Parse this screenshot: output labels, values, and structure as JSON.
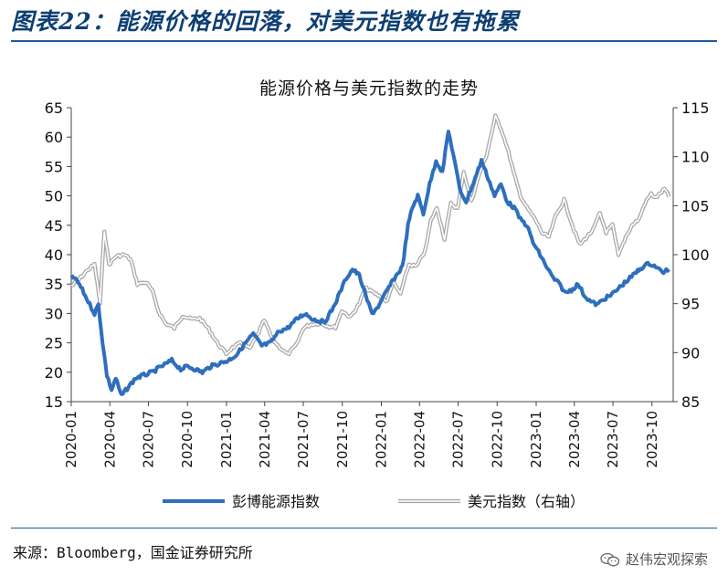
{
  "figure": {
    "title": "图表22：能源价格的回落，对美元指数也有拖累",
    "source": "来源：Bloomberg，国金证券研究所",
    "watermark": "赵伟宏观探索",
    "watermark_icon": "wechat-icon",
    "accent_color": "#0d3f73"
  },
  "chart_data": {
    "type": "line",
    "title": "能源价格与美元指数的走势",
    "left_axis": {
      "min": 15,
      "max": 65,
      "ticks": [
        "15",
        "20",
        "25",
        "30",
        "35",
        "40",
        "45",
        "50",
        "55",
        "60",
        "65"
      ]
    },
    "right_axis": {
      "min": 85,
      "max": 115,
      "ticks": [
        "85",
        "90",
        "95",
        "100",
        "105",
        "110",
        "115"
      ]
    },
    "x_ticks": [
      "2020-01",
      "2020-04",
      "2020-07",
      "2020-10",
      "2021-01",
      "2021-04",
      "2021-07",
      "2021-10",
      "2022-01",
      "2022-04",
      "2022-07",
      "2022-10",
      "2023-01",
      "2023-04",
      "2023-07",
      "2023-10"
    ],
    "legend": {
      "position": "bottom"
    },
    "grid": false,
    "series": [
      {
        "name": "彭博能源指数",
        "axis": "left",
        "color": "#2e6fbd",
        "points": [
          [
            "2020-01-02",
            36.5
          ],
          [
            "2020-01-20",
            35.0
          ],
          [
            "2020-02-10",
            32.0
          ],
          [
            "2020-02-25",
            30.0
          ],
          [
            "2020-03-05",
            31.5
          ],
          [
            "2020-03-15",
            25.0
          ],
          [
            "2020-03-25",
            19.5
          ],
          [
            "2020-04-05",
            17.0
          ],
          [
            "2020-04-15",
            19.0
          ],
          [
            "2020-04-28",
            16.0
          ],
          [
            "2020-05-15",
            17.5
          ],
          [
            "2020-06-01",
            19.0
          ],
          [
            "2020-06-20",
            19.5
          ],
          [
            "2020-07-10",
            20.0
          ],
          [
            "2020-08-01",
            21.0
          ],
          [
            "2020-08-25",
            22.0
          ],
          [
            "2020-09-15",
            20.5
          ],
          [
            "2020-10-01",
            21.0
          ],
          [
            "2020-10-20",
            20.5
          ],
          [
            "2020-11-05",
            20.0
          ],
          [
            "2020-11-25",
            21.0
          ],
          [
            "2020-12-15",
            21.5
          ],
          [
            "2021-01-05",
            22.0
          ],
          [
            "2021-01-25",
            23.0
          ],
          [
            "2021-02-15",
            25.0
          ],
          [
            "2021-03-05",
            26.5
          ],
          [
            "2021-03-25",
            24.5
          ],
          [
            "2021-04-15",
            25.0
          ],
          [
            "2021-05-05",
            27.0
          ],
          [
            "2021-05-25",
            27.5
          ],
          [
            "2021-06-15",
            29.0
          ],
          [
            "2021-07-05",
            30.0
          ],
          [
            "2021-07-25",
            29.0
          ],
          [
            "2021-08-20",
            28.5
          ],
          [
            "2021-09-10",
            31.0
          ],
          [
            "2021-09-25",
            33.5
          ],
          [
            "2021-10-10",
            36.0
          ],
          [
            "2021-10-25",
            37.5
          ],
          [
            "2021-11-10",
            36.5
          ],
          [
            "2021-11-25",
            33.0
          ],
          [
            "2021-12-10",
            30.0
          ],
          [
            "2021-12-28",
            31.5
          ],
          [
            "2022-01-15",
            34.0
          ],
          [
            "2022-02-01",
            36.0
          ],
          [
            "2022-02-20",
            38.0
          ],
          [
            "2022-03-05",
            45.0
          ],
          [
            "2022-03-15",
            48.0
          ],
          [
            "2022-03-28",
            50.0
          ],
          [
            "2022-04-10",
            47.0
          ],
          [
            "2022-04-25",
            52.0
          ],
          [
            "2022-05-10",
            56.0
          ],
          [
            "2022-05-25",
            54.0
          ],
          [
            "2022-06-08",
            61.0
          ],
          [
            "2022-06-20",
            57.0
          ],
          [
            "2022-07-05",
            51.0
          ],
          [
            "2022-07-20",
            49.0
          ],
          [
            "2022-08-10",
            53.0
          ],
          [
            "2022-08-25",
            56.0
          ],
          [
            "2022-09-10",
            53.0
          ],
          [
            "2022-09-25",
            50.0
          ],
          [
            "2022-10-10",
            52.0
          ],
          [
            "2022-10-25",
            49.0
          ],
          [
            "2022-11-10",
            48.0
          ],
          [
            "2022-11-25",
            46.0
          ],
          [
            "2022-12-10",
            45.0
          ],
          [
            "2022-12-25",
            42.0
          ],
          [
            "2023-01-10",
            40.0
          ],
          [
            "2023-01-25",
            38.0
          ],
          [
            "2023-02-10",
            36.0
          ],
          [
            "2023-02-25",
            35.0
          ],
          [
            "2023-03-10",
            33.5
          ],
          [
            "2023-03-25",
            34.0
          ],
          [
            "2023-04-10",
            35.0
          ],
          [
            "2023-04-25",
            33.0
          ],
          [
            "2023-05-10",
            32.0
          ],
          [
            "2023-05-25",
            31.5
          ],
          [
            "2023-06-10",
            32.5
          ],
          [
            "2023-06-25",
            33.0
          ],
          [
            "2023-07-10",
            34.0
          ],
          [
            "2023-07-25",
            35.0
          ],
          [
            "2023-08-10",
            36.0
          ],
          [
            "2023-08-25",
            37.0
          ],
          [
            "2023-09-10",
            38.0
          ],
          [
            "2023-09-25",
            38.5
          ],
          [
            "2023-10-10",
            38.0
          ],
          [
            "2023-10-25",
            37.0
          ],
          [
            "2023-11-10",
            37.5
          ]
        ]
      },
      {
        "name": "美元指数（右轴）",
        "axis": "right",
        "color": "#a8a8a8",
        "points": [
          [
            "2020-01-02",
            96.8
          ],
          [
            "2020-01-20",
            97.5
          ],
          [
            "2020-02-10",
            98.5
          ],
          [
            "2020-02-25",
            99.0
          ],
          [
            "2020-03-09",
            95.0
          ],
          [
            "2020-03-19",
            102.5
          ],
          [
            "2020-03-30",
            99.0
          ],
          [
            "2020-04-15",
            99.8
          ],
          [
            "2020-05-05",
            100.0
          ],
          [
            "2020-05-20",
            99.5
          ],
          [
            "2020-06-05",
            97.0
          ],
          [
            "2020-06-25",
            97.2
          ],
          [
            "2020-07-10",
            96.3
          ],
          [
            "2020-07-25",
            94.2
          ],
          [
            "2020-08-10",
            93.0
          ],
          [
            "2020-08-31",
            92.5
          ],
          [
            "2020-09-20",
            93.8
          ],
          [
            "2020-10-10",
            93.4
          ],
          [
            "2020-10-30",
            93.5
          ],
          [
            "2020-11-20",
            92.4
          ],
          [
            "2020-12-10",
            91.0
          ],
          [
            "2020-12-31",
            89.9
          ],
          [
            "2021-01-15",
            90.5
          ],
          [
            "2021-02-05",
            91.0
          ],
          [
            "2021-02-25",
            90.4
          ],
          [
            "2021-03-15",
            91.8
          ],
          [
            "2021-03-31",
            93.3
          ],
          [
            "2021-04-20",
            91.3
          ],
          [
            "2021-05-10",
            90.4
          ],
          [
            "2021-05-25",
            89.8
          ],
          [
            "2021-06-15",
            90.8
          ],
          [
            "2021-07-01",
            92.5
          ],
          [
            "2021-07-20",
            92.9
          ],
          [
            "2021-08-10",
            93.0
          ],
          [
            "2021-08-30",
            92.7
          ],
          [
            "2021-09-15",
            92.6
          ],
          [
            "2021-09-30",
            94.3
          ],
          [
            "2021-10-20",
            93.6
          ],
          [
            "2021-11-10",
            95.0
          ],
          [
            "2021-11-24",
            96.6
          ],
          [
            "2021-12-10",
            96.2
          ],
          [
            "2021-12-31",
            95.7
          ],
          [
            "2022-01-15",
            95.2
          ],
          [
            "2022-01-28",
            97.2
          ],
          [
            "2022-02-15",
            96.0
          ],
          [
            "2022-03-07",
            99.0
          ],
          [
            "2022-03-25",
            98.8
          ],
          [
            "2022-04-15",
            100.5
          ],
          [
            "2022-04-28",
            103.5
          ],
          [
            "2022-05-12",
            104.8
          ],
          [
            "2022-05-30",
            101.6
          ],
          [
            "2022-06-14",
            105.2
          ],
          [
            "2022-06-30",
            104.7
          ],
          [
            "2022-07-14",
            108.5
          ],
          [
            "2022-08-01",
            105.4
          ],
          [
            "2022-08-22",
            108.5
          ],
          [
            "2022-09-05",
            110.0
          ],
          [
            "2022-09-27",
            114.1
          ],
          [
            "2022-10-10",
            112.9
          ],
          [
            "2022-10-25",
            110.9
          ],
          [
            "2022-11-10",
            108.2
          ],
          [
            "2022-11-25",
            106.0
          ],
          [
            "2022-12-10",
            104.8
          ],
          [
            "2022-12-31",
            103.5
          ],
          [
            "2023-01-15",
            102.2
          ],
          [
            "2023-01-31",
            101.8
          ],
          [
            "2023-02-15",
            103.8
          ],
          [
            "2023-03-08",
            105.6
          ],
          [
            "2023-03-31",
            102.5
          ],
          [
            "2023-04-14",
            101.0
          ],
          [
            "2023-04-28",
            101.7
          ],
          [
            "2023-05-15",
            102.5
          ],
          [
            "2023-05-31",
            104.2
          ],
          [
            "2023-06-15",
            102.3
          ],
          [
            "2023-06-30",
            103.0
          ],
          [
            "2023-07-14",
            99.9
          ],
          [
            "2023-07-31",
            101.8
          ],
          [
            "2023-08-15",
            103.0
          ],
          [
            "2023-08-31",
            103.6
          ],
          [
            "2023-09-15",
            105.3
          ],
          [
            "2023-09-29",
            106.2
          ],
          [
            "2023-10-10",
            105.8
          ],
          [
            "2023-10-31",
            106.7
          ],
          [
            "2023-11-10",
            105.9
          ]
        ]
      }
    ]
  }
}
